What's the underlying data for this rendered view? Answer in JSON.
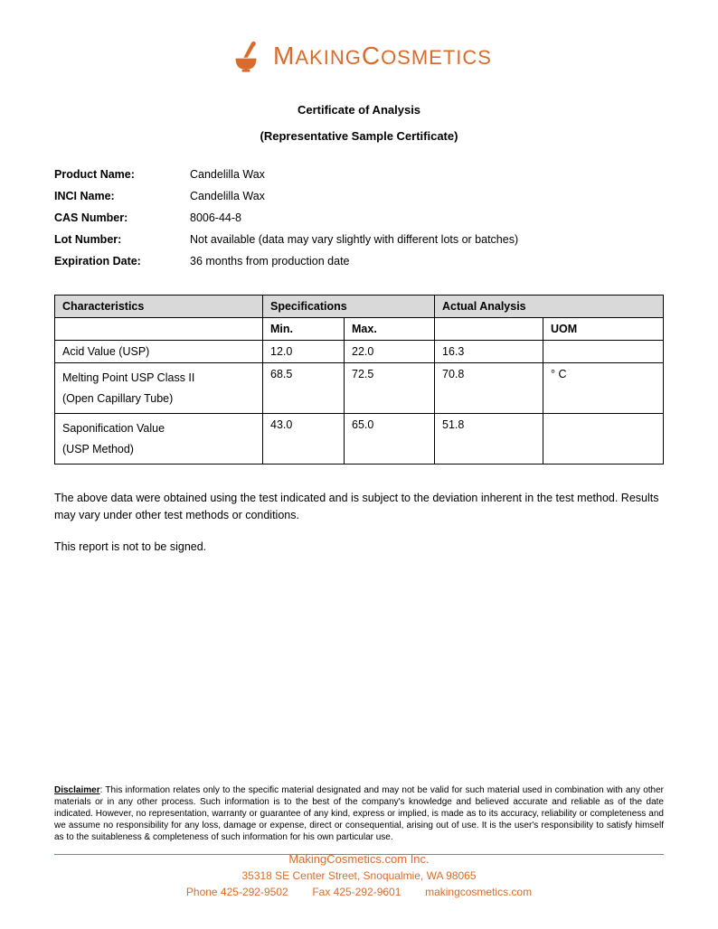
{
  "logo": {
    "brand_part1": "M",
    "brand_part2": "AKING",
    "brand_part3": "C",
    "brand_part4": "OSMETICS",
    "icon_color": "#d96c2c",
    "text_color": "#d96c2c"
  },
  "titles": {
    "main": "Certificate of Analysis",
    "sub": "(Representative Sample Certificate)"
  },
  "info": {
    "product_name_label": "Product Name:",
    "product_name_value": "Candelilla Wax",
    "inci_label": "INCI Name:",
    "inci_value": "Candelilla Wax",
    "cas_label": "CAS Number:",
    "cas_value": "8006-44-8",
    "lot_label": "Lot Number:",
    "lot_value": "Not available (data may vary slightly with different lots or batches)",
    "exp_label": "Expiration Date:",
    "exp_value": "36 months from production date"
  },
  "table": {
    "headers": {
      "characteristics": "Characteristics",
      "specifications": "Specifications",
      "actual": "Actual Analysis",
      "min": "Min.",
      "max": "Max.",
      "uom": "UOM"
    },
    "rows": [
      {
        "char": "Acid Value (USP)",
        "min": "12.0",
        "max": "22.0",
        "actual": "16.3",
        "uom": ""
      },
      {
        "char": "Melting Point USP Class II\n(Open Capillary Tube)",
        "min": "68.5",
        "max": "72.5",
        "actual": "70.8",
        "uom": "° C"
      },
      {
        "char": "Saponification Value\n(USP Method)",
        "min": "43.0",
        "max": "65.0",
        "actual": "51.8",
        "uom": ""
      }
    ]
  },
  "notes": {
    "note1": "The above data were obtained using the test indicated and is subject to the deviation inherent in the test method. Results may vary under other test methods or conditions.",
    "note2": "This report is not to be signed."
  },
  "disclaimer": {
    "label": "Disclaimer",
    "text": ": This information relates only to the specific material designated and may not be valid for such material used in combination with any other materials or in any other process. Such information is to the best of the company's knowledge and believed accurate and reliable as of the date indicated. However, no representation, warranty or guarantee of any kind, express or implied, is made as to its accuracy, reliability or completeness and we assume no responsibility for any loss, damage or expense, direct or consequential, arising out of use. It is the user's responsibility to satisfy himself as to the suitableness & completeness of such information for his own particular use."
  },
  "footer": {
    "company": "MakingCosmetics.com Inc.",
    "address": "35318 SE Center Street, Snoqualmie, WA 98065",
    "contact": "Phone 425-292-9502        Fax 425-292-9601        makingcosmetics.com",
    "color": "#d96c2c"
  },
  "style": {
    "page_bg": "#ffffff",
    "table_header_bg": "#d9d9d9",
    "border_color": "#000000",
    "accent_color": "#d96c2c",
    "body_fontsize": 12.5,
    "disclaimer_fontsize": 10
  }
}
